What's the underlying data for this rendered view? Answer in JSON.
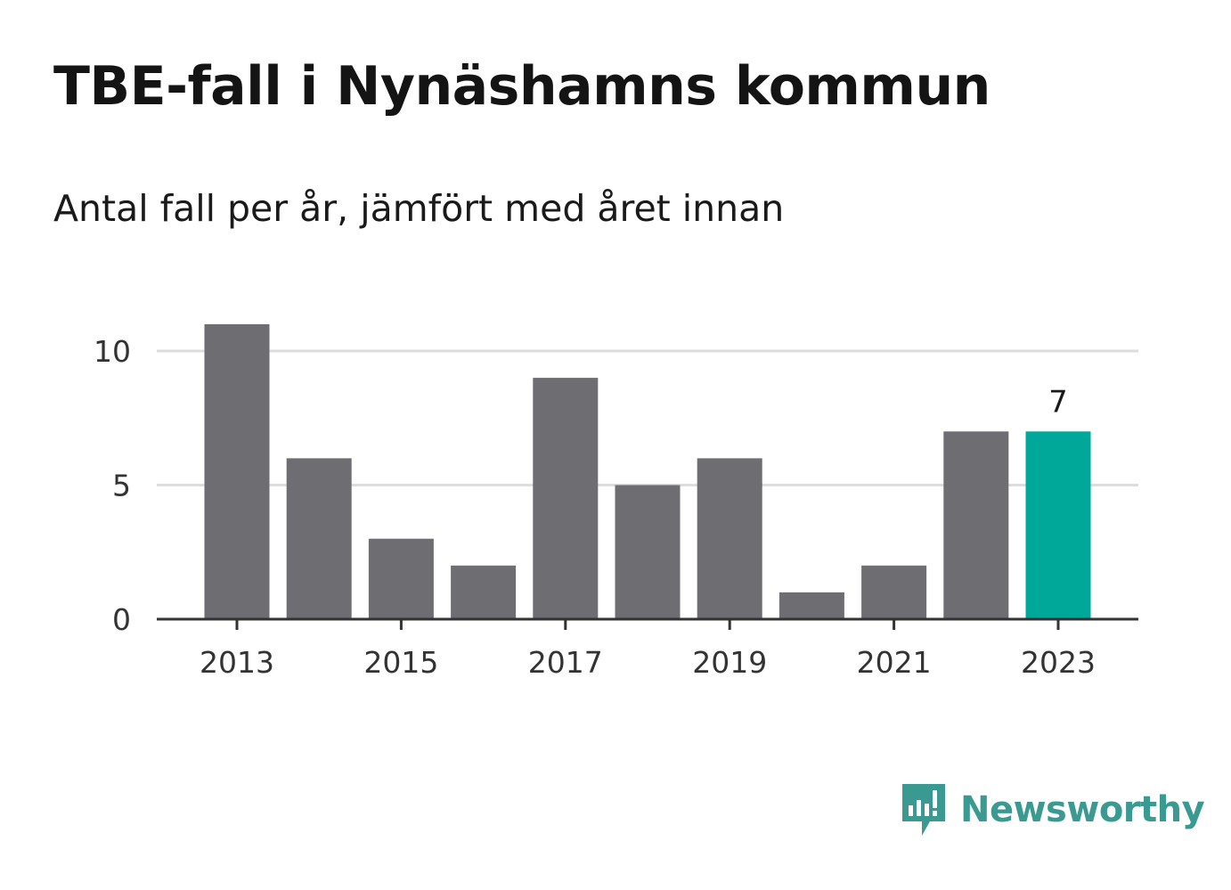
{
  "title": "TBE-fall i Nynäshamns kommun",
  "subtitle": "Antal fall per år, jämfört med året innan",
  "brand": {
    "name": "Newsworthy",
    "logo_icon": "newsworthy-logo-icon",
    "color": "#3a9a92"
  },
  "colors": {
    "bar": "#6e6d72",
    "highlight": "#00a89a",
    "grid": "#dddddd",
    "axis": "#333333"
  },
  "chart_data": {
    "type": "bar",
    "title": "TBE-fall i Nynäshamns kommun",
    "subtitle": "Antal fall per år, jämfört med året innan",
    "xlabel": "",
    "ylabel": "",
    "categories": [
      2013,
      2014,
      2015,
      2016,
      2017,
      2018,
      2019,
      2020,
      2021,
      2022,
      2023
    ],
    "values": [
      11,
      6,
      3,
      2,
      9,
      5,
      6,
      1,
      2,
      7,
      7
    ],
    "ylim": [
      0,
      11
    ],
    "yticks": [
      0,
      5,
      10
    ],
    "xticks": [
      2013,
      2015,
      2017,
      2019,
      2021,
      2023
    ],
    "highlight_category": 2023,
    "data_labels": [
      {
        "category": 2023,
        "text": "7"
      }
    ],
    "grid": "horizontal",
    "legend": "none"
  }
}
